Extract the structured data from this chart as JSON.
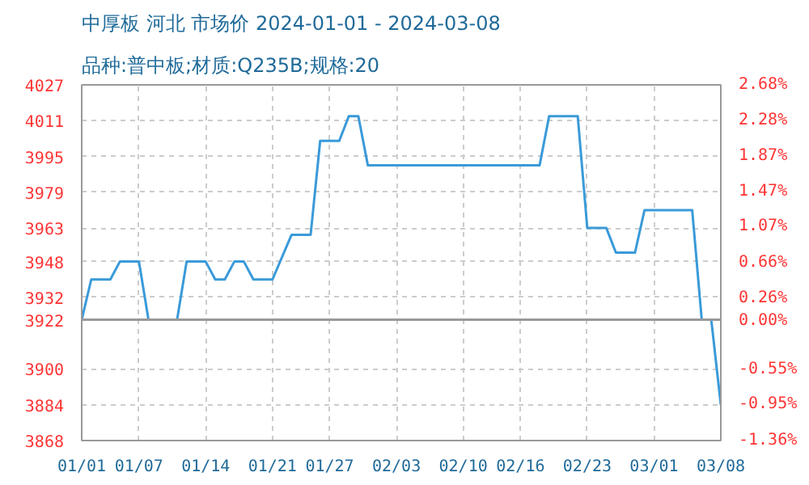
{
  "chart_data": {
    "type": "line",
    "title": "中厚板 河北 市场价 2024-01-01 - 2024-03-08",
    "subtitle": "品种:普中板;材质:Q235B;规格:20",
    "x": [
      "2024-01-01",
      "2024-01-02",
      "2024-01-04",
      "2024-01-05",
      "2024-01-07",
      "2024-01-08",
      "2024-01-11",
      "2024-01-12",
      "2024-01-14",
      "2024-01-15",
      "2024-01-16",
      "2024-01-17",
      "2024-01-18",
      "2024-01-19",
      "2024-01-21",
      "2024-01-23",
      "2024-01-25",
      "2024-01-26",
      "2024-01-28",
      "2024-01-29",
      "2024-01-30",
      "2024-01-31",
      "2024-02-18",
      "2024-02-19",
      "2024-02-22",
      "2024-02-23",
      "2024-02-25",
      "2024-02-26",
      "2024-02-28",
      "2024-02-29",
      "2024-03-05",
      "2024-03-06",
      "2024-03-07",
      "2024-03-08"
    ],
    "series": [
      {
        "color": "#3a9ad9",
        "values": [
          3922,
          3940,
          3940,
          3948,
          3948,
          3922,
          3922,
          3948,
          3948,
          3940,
          3940,
          3948,
          3948,
          3940,
          3940,
          3960,
          3960,
          4002,
          4002,
          4013,
          4013,
          3991,
          3991,
          4013,
          4013,
          3963,
          3963,
          3952,
          3952,
          3971,
          3971,
          3922,
          3922,
          3884
        ]
      }
    ],
    "xlim": [
      "2024-01-01",
      "2024-03-08"
    ],
    "xticks": [
      {
        "value": "2024-01-01",
        "label": "01/01"
      },
      {
        "value": "2024-01-07",
        "label": "01/07"
      },
      {
        "value": "2024-01-14",
        "label": "01/14"
      },
      {
        "value": "2024-01-21",
        "label": "01/21"
      },
      {
        "value": "2024-01-27",
        "label": "01/27"
      },
      {
        "value": "2024-02-03",
        "label": "02/03"
      },
      {
        "value": "2024-02-10",
        "label": "02/10"
      },
      {
        "value": "2024-02-16",
        "label": "02/16"
      },
      {
        "value": "2024-02-23",
        "label": "02/23"
      },
      {
        "value": "2024-03-01",
        "label": "03/01"
      },
      {
        "value": "2024-03-08",
        "label": "03/08"
      }
    ],
    "ylim": [
      3868,
      4027
    ],
    "yticks": [
      3868,
      3884,
      3900,
      3922,
      3932,
      3948,
      3963,
      3979,
      3995,
      4011,
      4027
    ],
    "y2lim": [
      -1.36,
      2.68
    ],
    "y2ticks": [
      {
        "value": -1.36,
        "label": "-1.36%"
      },
      {
        "value": -0.95,
        "label": "-0.95%"
      },
      {
        "value": -0.55,
        "label": "-0.55%"
      },
      {
        "value": 0,
        "label": "0.00%"
      },
      {
        "value": 0.26,
        "label": "0.26%"
      },
      {
        "value": 0.66,
        "label": "0.66%"
      },
      {
        "value": 1.07,
        "label": "1.07%"
      },
      {
        "value": 1.47,
        "label": "1.47%"
      },
      {
        "value": 1.87,
        "label": "1.87%"
      },
      {
        "value": 2.28,
        "label": "2.28%"
      },
      {
        "value": 2.68,
        "label": "2.68%"
      }
    ],
    "ref_lines": [
      {
        "axis": "y",
        "value": 3922,
        "color": "#999999",
        "line_style": "solid"
      }
    ],
    "grid": true,
    "marker": "none",
    "line_style": "solid"
  }
}
